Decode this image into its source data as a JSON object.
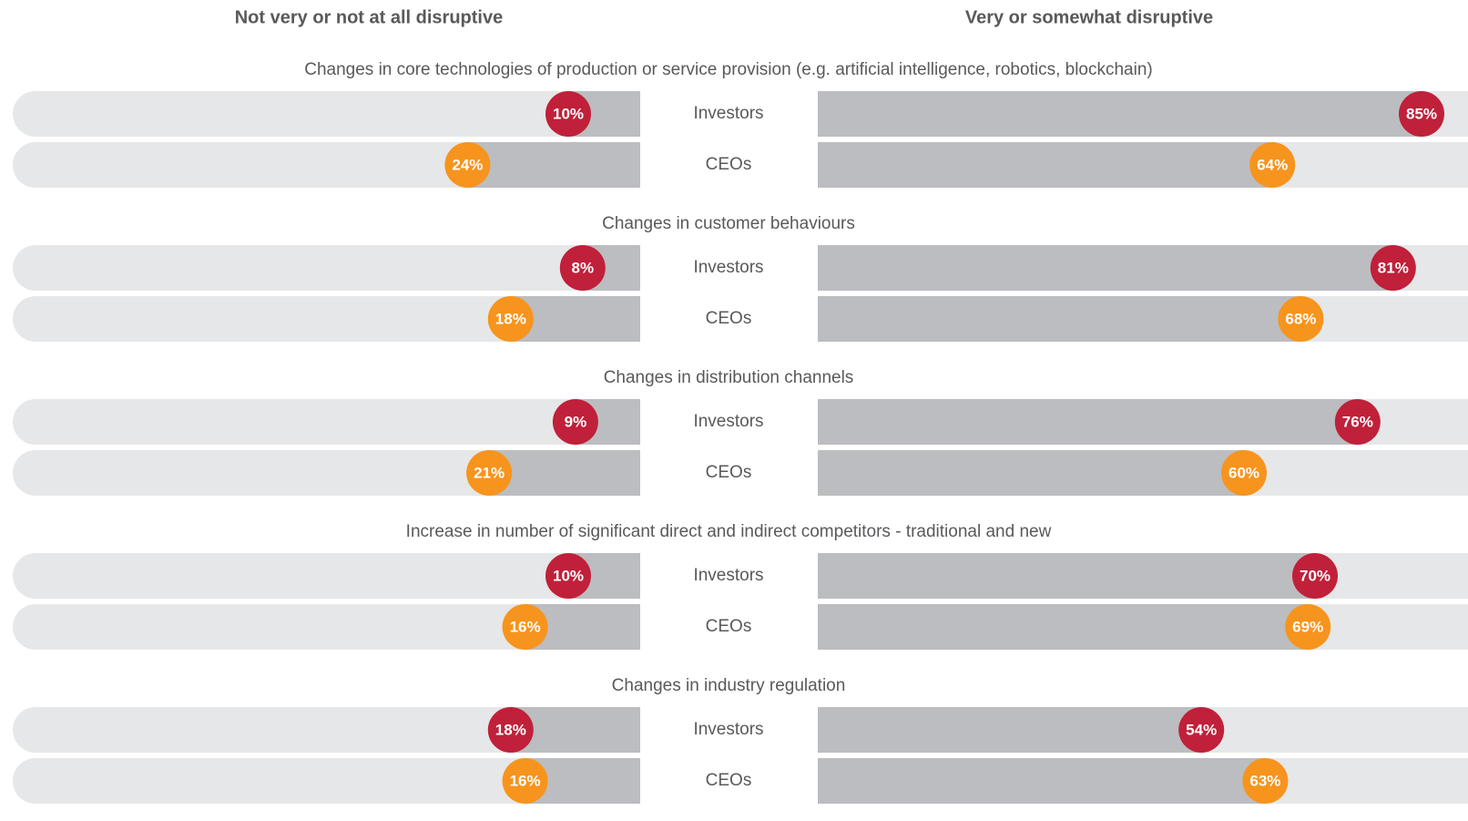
{
  "chart_data": {
    "type": "diverging_bar",
    "left_title": "Not very or not at all disruptive",
    "right_title": "Very or somewhat disruptive",
    "categories": [
      "Changes in core technologies of production or service provision (e.g. artificial intelligence, robotics, blockchain)",
      "Changes in customer behaviours",
      "Changes in distribution channels",
      "Increase in number of significant direct and indirect competitors - traditional and new",
      "Changes in industry regulation"
    ],
    "series": [
      {
        "name": "Investors",
        "color": "#c0203a",
        "left_values": [
          10,
          8,
          9,
          10,
          18
        ],
        "left_value_labels": [
          "10%",
          "8%",
          "9%",
          "10%",
          "18%"
        ],
        "right_values": [
          85,
          81,
          76,
          70,
          54
        ],
        "right_value_labels": [
          "85%",
          "81%",
          "76%",
          "70%",
          "54%"
        ]
      },
      {
        "name": "CEOs",
        "color": "#f7941d",
        "left_values": [
          24,
          18,
          21,
          16,
          16
        ],
        "left_value_labels": [
          "24%",
          "18%",
          "21%",
          "16%",
          "16%"
        ],
        "right_values": [
          64,
          68,
          60,
          69,
          63
        ],
        "right_value_labels": [
          "64%",
          "68%",
          "60%",
          "69%",
          "63%"
        ]
      }
    ]
  }
}
